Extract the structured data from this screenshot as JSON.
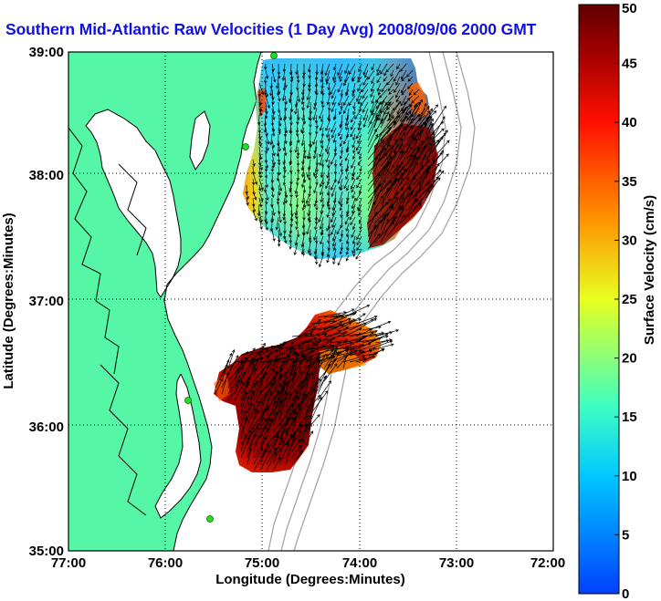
{
  "chart_data": {
    "type": "heatmap",
    "title": "Southern Mid-Atlantic Raw Velocities (1 Day Avg) 2008/09/06 2000 GMT",
    "xlabel": "Longitude (Degrees:Minutes)",
    "ylabel": "Latitude (Degrees:Minutes)",
    "x_ticks": [
      "77:00",
      "76:00",
      "75:00",
      "74:00",
      "73:00",
      "72:00"
    ],
    "y_ticks": [
      "39:00",
      "38:00",
      "37:00",
      "36:00",
      "35:00"
    ],
    "x_range": [
      -77,
      -72
    ],
    "y_range": [
      35,
      39
    ],
    "grid": true,
    "colorbar": {
      "label": "Surface Velocity (cm/s)",
      "range": [
        0,
        50
      ],
      "ticks": [
        "0",
        "5",
        "10",
        "15",
        "20",
        "25",
        "30",
        "35",
        "40",
        "45",
        "50"
      ],
      "colors": [
        "#0040ff",
        "#00c8ff",
        "#40ffc0",
        "#e8ff20",
        "#ff9000",
        "#ff1000",
        "#a00000",
        "#600000"
      ]
    },
    "colors": {
      "land": "#55f7a7",
      "water": "#ffffff",
      "coast": "#000000",
      "bathymetry": "#a0a0a0",
      "stations": "#22dd22",
      "arrows": "#000000"
    },
    "regions": [
      {
        "name": "northern-velocity-field",
        "center_lon": -74.55,
        "center_lat": 38.1,
        "velocity_range_cms": [
          5,
          50
        ]
      },
      {
        "name": "southern-velocity-field",
        "center_lon": -74.85,
        "center_lat": 36.2,
        "velocity_range_cms": [
          30,
          50
        ]
      }
    ]
  }
}
